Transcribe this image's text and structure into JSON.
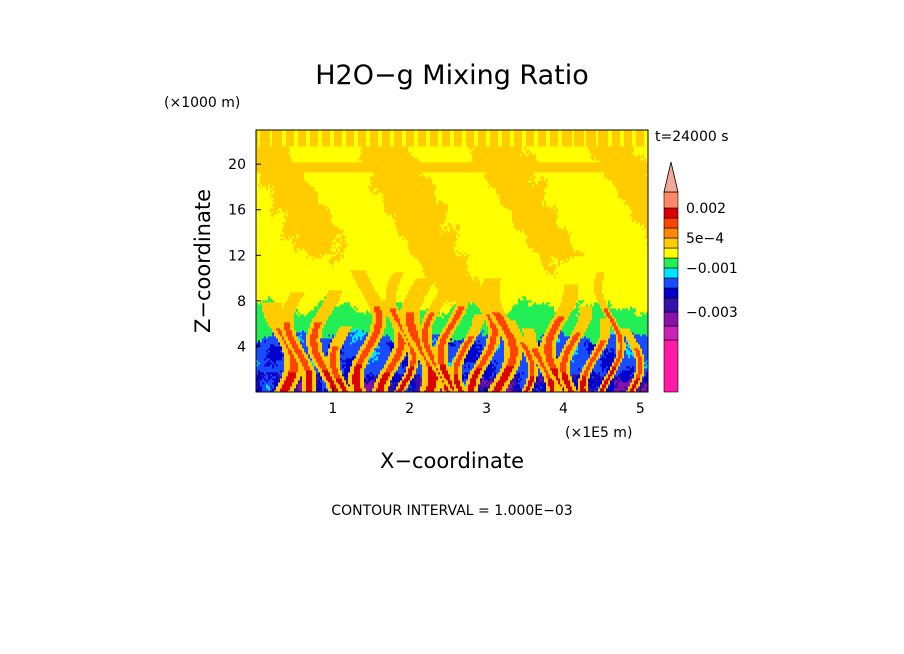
{
  "chart_data": {
    "type": "heatmap",
    "title": "H2O−g Mixing Ratio",
    "xlabel": "X−coordinate",
    "ylabel": "Z−coordinate",
    "x_unit": "(×1E5 m)",
    "y_unit": "(×1000 m)",
    "time_label": "t=24000 s",
    "footer": "CONTOUR INTERVAL = 1.000E−03",
    "xlim": [
      0,
      5.1
    ],
    "ylim": [
      0,
      23
    ],
    "x_ticks": [
      "1",
      "2",
      "3",
      "4",
      "5"
    ],
    "y_ticks": [
      "4",
      "8",
      "12",
      "16",
      "20"
    ],
    "colorbar": {
      "labels": [
        "0.002",
        "5e−4",
        "−0.001",
        "−0.003"
      ],
      "label_values": [
        0.002,
        0.0005,
        -0.001,
        -0.003
      ],
      "levels": [
        -0.005,
        -0.004,
        -0.003,
        -0.0025,
        -0.002,
        -0.0015,
        -0.001,
        -0.0005,
        0,
        0.0005,
        0.001,
        0.0015,
        0.002,
        0.0025
      ],
      "colors": [
        "#ff1aa8",
        "#cc22bb",
        "#8811aa",
        "#3311aa",
        "#0000cc",
        "#1a4cff",
        "#00e5ff",
        "#22ee55",
        "#ffff00",
        "#ffcc00",
        "#ff8800",
        "#ff4400",
        "#dd0000",
        "#ff8866",
        "#f0a898"
      ]
    },
    "field_description_levels": {
      "upper_background": 0.00025,
      "plumes": 0.0008,
      "mid_layer": -0.0008,
      "lower_layer": -0.0018
    }
  }
}
